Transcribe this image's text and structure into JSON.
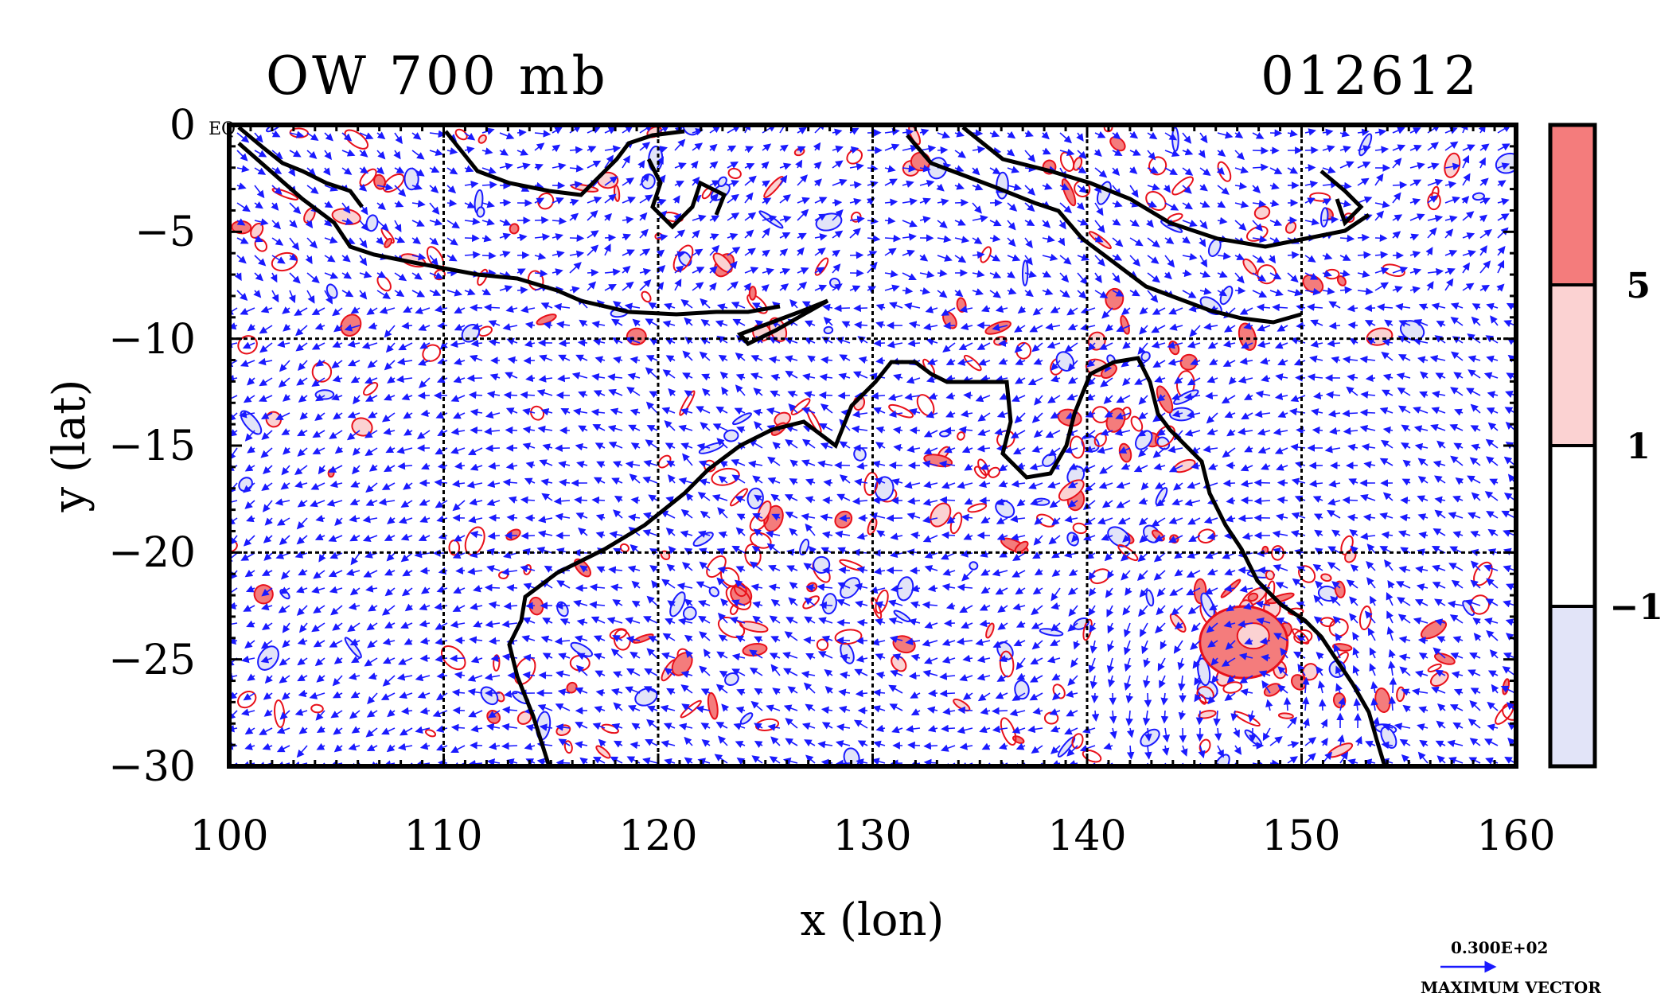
{
  "map": {
    "title_left": "OW 700 mb",
    "title_right": "012612",
    "equator_label": "EQ",
    "xlabel": "x (lon)",
    "ylabel": "y (lat)",
    "x_ticks": [
      "100",
      "110",
      "120",
      "130",
      "140",
      "150",
      "160"
    ],
    "y_ticks": [
      "0",
      "−5",
      "−10",
      "−15",
      "−20",
      "−25",
      "−30"
    ],
    "lon_range": [
      100,
      160
    ],
    "lat_range": [
      -30,
      0
    ],
    "grid_lon": [
      110,
      120,
      130,
      140,
      150
    ],
    "grid_lat": [
      -10,
      -20
    ],
    "colors": {
      "vector": "#1a1aff",
      "contour_positive": "#e8101a",
      "fill_high": "#f47c7c",
      "fill_mid": "#fbd2d2",
      "fill_neutral": "#ffffff",
      "fill_negative": "#e2e4f8",
      "coast": "#000000"
    }
  },
  "colorbar": {
    "labels": [
      "5",
      "1",
      "−1"
    ],
    "bins": [
      "high",
      "mid",
      "neutral",
      "negative"
    ]
  },
  "legend": {
    "value": "0.300E+02",
    "caption": "MAXIMUM VECTOR"
  }
}
